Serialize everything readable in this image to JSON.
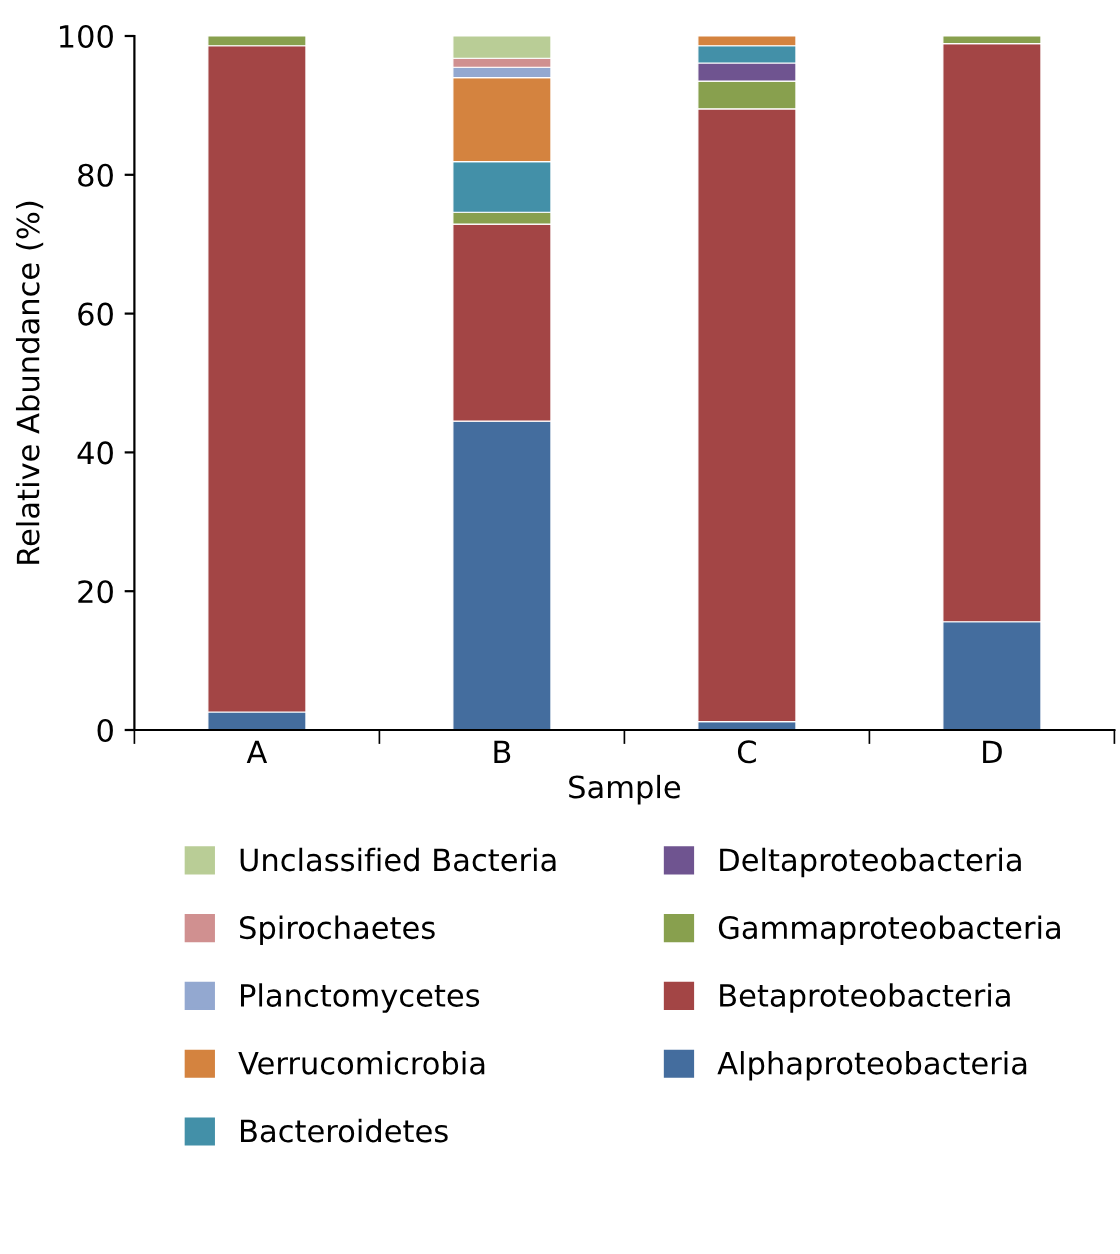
{
  "chart_data": {
    "type": "bar",
    "stacked": true,
    "xlabel": "Sample",
    "ylabel": "Relative Abundance (%)",
    "categories": [
      "A",
      "B",
      "C",
      "D"
    ],
    "ylim": [
      0,
      100
    ],
    "yticks": [
      0,
      20,
      40,
      60,
      80,
      100
    ],
    "grid": false,
    "legend": "bottom",
    "series": [
      {
        "name": "Alphaproteobacteria",
        "color": "#446d9e",
        "values": [
          2.6,
          44.5,
          1.2,
          15.6
        ]
      },
      {
        "name": "Betaproteobacteria",
        "color": "#a34545",
        "values": [
          96.0,
          28.4,
          88.3,
          83.3
        ]
      },
      {
        "name": "Gammaproteobacteria",
        "color": "#88a04e",
        "values": [
          1.4,
          1.7,
          4.0,
          1.1
        ]
      },
      {
        "name": "Deltaproteobacteria",
        "color": "#6f5490",
        "values": [
          null,
          null,
          2.6,
          null
        ]
      },
      {
        "name": "Bacteroidetes",
        "color": "#4390a8",
        "values": [
          null,
          7.3,
          2.5,
          null
        ]
      },
      {
        "name": "Verrucomicrobia",
        "color": "#d4833f",
        "values": [
          null,
          12.1,
          1.4,
          null
        ]
      },
      {
        "name": "Planctomycetes",
        "color": "#93a8d0",
        "values": [
          null,
          1.5,
          null,
          null
        ]
      },
      {
        "name": "Spirochaetes",
        "color": "#d09090",
        "values": [
          null,
          1.3,
          null,
          null
        ]
      },
      {
        "name": "Unclassified Bacteria",
        "color": "#b9cd96",
        "values": [
          null,
          3.2,
          null,
          null
        ]
      }
    ]
  }
}
